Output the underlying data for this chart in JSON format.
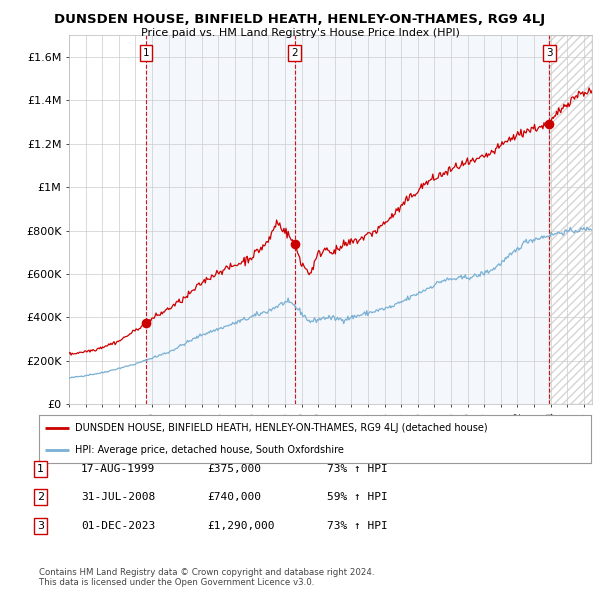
{
  "title": "DUNSDEN HOUSE, BINFIELD HEATH, HENLEY-ON-THAMES, RG9 4LJ",
  "subtitle": "Price paid vs. HM Land Registry's House Price Index (HPI)",
  "xlim_start": 1995.0,
  "xlim_end": 2026.5,
  "ylim": [
    0,
    1700000
  ],
  "yticks": [
    0,
    200000,
    400000,
    600000,
    800000,
    1000000,
    1200000,
    1400000,
    1600000
  ],
  "ytick_labels": [
    "£0",
    "£200K",
    "£400K",
    "£600K",
    "£800K",
    "£1M",
    "£1.2M",
    "£1.4M",
    "£1.6M"
  ],
  "sale_dates": [
    1999.625,
    2008.583,
    2023.917
  ],
  "sale_prices": [
    375000,
    740000,
    1290000
  ],
  "sale_labels": [
    "1",
    "2",
    "3"
  ],
  "sale_date_strs": [
    "17-AUG-1999",
    "31-JUL-2008",
    "01-DEC-2023"
  ],
  "sale_price_strs": [
    "£375,000",
    "£740,000",
    "£1,290,000"
  ],
  "sale_hpi_strs": [
    "73% ↑ HPI",
    "59% ↑ HPI",
    "73% ↑ HPI"
  ],
  "legend_line1": "DUNSDEN HOUSE, BINFIELD HEATH, HENLEY-ON-THAMES, RG9 4LJ (detached house)",
  "legend_line2": "HPI: Average price, detached house, South Oxfordshire",
  "footer1": "Contains HM Land Registry data © Crown copyright and database right 2024.",
  "footer2": "This data is licensed under the Open Government Licence v3.0.",
  "line_color": "#cc0000",
  "hpi_color": "#7ab0d4",
  "vline_color": "#cc0000",
  "shade_color": "#ddeeff",
  "background_color": "#ffffff",
  "grid_color": "#cccccc"
}
